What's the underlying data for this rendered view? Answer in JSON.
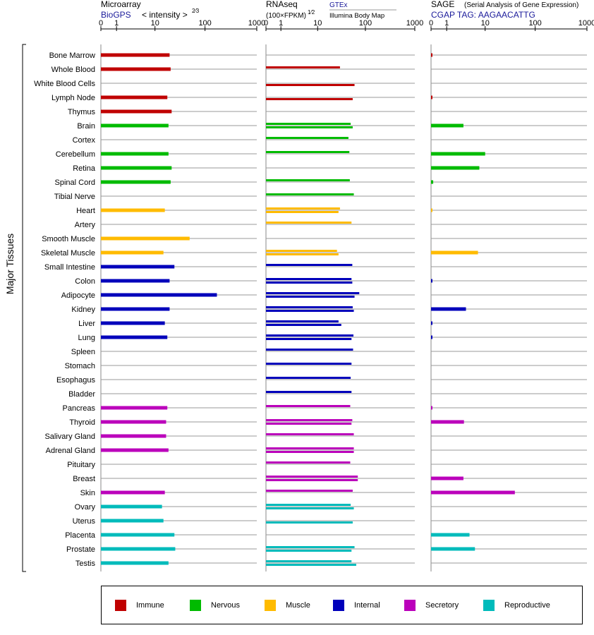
{
  "header": {
    "microarray": {
      "title": "Microarray",
      "source": "BioGPS",
      "metric": "< intensity >",
      "metric_exp": "2⁄3"
    },
    "rnaseq": {
      "title": "RNAseq",
      "metric": "(100×FPKM)",
      "metric_exp": "1⁄2",
      "source1": "GTEx",
      "source2": "Illumina Body Map"
    },
    "sage": {
      "title": "SAGE",
      "subtitle": "(Serial Analysis of Gene Expression)",
      "tag": "CGAP TAG: AAGAACATTG"
    }
  },
  "axis_ticks": [
    "0",
    "1",
    "10",
    "100",
    "1000"
  ],
  "y_axis_label": "Major Tissues",
  "colors": {
    "Immune": "#c00000",
    "Nervous": "#00bb00",
    "Muscle": "#ffbb00",
    "Internal": "#0000bb",
    "Secretory": "#bb00bb",
    "Reproductive": "#00bbbb"
  },
  "legend": [
    {
      "label": "Immune",
      "color": "#c00000"
    },
    {
      "label": "Nervous",
      "color": "#00bb00"
    },
    {
      "label": "Muscle",
      "color": "#ffbb00"
    },
    {
      "label": "Internal",
      "color": "#0000bb"
    },
    {
      "label": "Secretory",
      "color": "#bb00bb"
    },
    {
      "label": "Reproductive",
      "color": "#00bbbb"
    }
  ],
  "chart_data": {
    "type": "bar",
    "orientation": "horizontal",
    "x_scale": "log",
    "ticks": [
      0,
      1,
      10,
      100,
      1000
    ],
    "xlim": [
      0,
      1000
    ],
    "categories": [
      "Bone Marrow",
      "Whole Blood",
      "White Blood Cells",
      "Lymph Node",
      "Thymus",
      "Brain",
      "Cortex",
      "Cerebellum",
      "Retina",
      "Spinal Cord",
      "Tibial Nerve",
      "Heart",
      "Artery",
      "Smooth Muscle",
      "Skeletal Muscle",
      "Small Intestine",
      "Colon",
      "Adipocyte",
      "Kidney",
      "Liver",
      "Lung",
      "Spleen",
      "Stomach",
      "Esophagus",
      "Bladder",
      "Pancreas",
      "Thyroid",
      "Salivary Gland",
      "Adrenal Gland",
      "Pituitary",
      "Breast",
      "Skin",
      "Ovary",
      "Uterus",
      "Placenta",
      "Prostate",
      "Testis"
    ],
    "groups": [
      "Immune",
      "Immune",
      "Immune",
      "Immune",
      "Immune",
      "Nervous",
      "Nervous",
      "Nervous",
      "Nervous",
      "Nervous",
      "Nervous",
      "Muscle",
      "Muscle",
      "Muscle",
      "Muscle",
      "Internal",
      "Internal",
      "Internal",
      "Internal",
      "Internal",
      "Internal",
      "Internal",
      "Internal",
      "Internal",
      "Internal",
      "Secretory",
      "Secretory",
      "Secretory",
      "Secretory",
      "Secretory",
      "Secretory",
      "Secretory",
      "Reproductive",
      "Reproductive",
      "Reproductive",
      "Reproductive",
      "Reproductive"
    ],
    "series": [
      {
        "name": "Microarray",
        "values": [
          20,
          21,
          null,
          18,
          22,
          19,
          null,
          19,
          22,
          21,
          null,
          16,
          null,
          50,
          15,
          25,
          20,
          170,
          20,
          16,
          18,
          null,
          null,
          null,
          null,
          18,
          17,
          17,
          19,
          null,
          null,
          16,
          14,
          15,
          25,
          26,
          19
        ]
      },
      {
        "name": "GTEx",
        "values": [
          null,
          30,
          null,
          null,
          null,
          50,
          45,
          47,
          null,
          48,
          58,
          30,
          52,
          null,
          26,
          54,
          52,
          75,
          55,
          28,
          57,
          56,
          52,
          50,
          52,
          49,
          54,
          58,
          58,
          49,
          70,
          55,
          50,
          null,
          null,
          60,
          52
        ]
      },
      {
        "name": "Illumina Body Map",
        "values": [
          null,
          null,
          60,
          55,
          null,
          55,
          null,
          null,
          null,
          null,
          null,
          28,
          null,
          null,
          28,
          null,
          54,
          60,
          58,
          32,
          52,
          null,
          null,
          null,
          null,
          null,
          52,
          null,
          58,
          null,
          70,
          null,
          58,
          55,
          null,
          52,
          65
        ]
      },
      {
        "name": "SAGE",
        "values": [
          0.01,
          null,
          null,
          0.01,
          null,
          3.2,
          null,
          10,
          7.5,
          0.1,
          null,
          0.02,
          null,
          null,
          7,
          null,
          0.02,
          null,
          3.7,
          0.02,
          0.02,
          null,
          null,
          null,
          null,
          0.02,
          3.3,
          null,
          null,
          null,
          3.2,
          40,
          null,
          null,
          4.5,
          6,
          null
        ]
      }
    ]
  }
}
